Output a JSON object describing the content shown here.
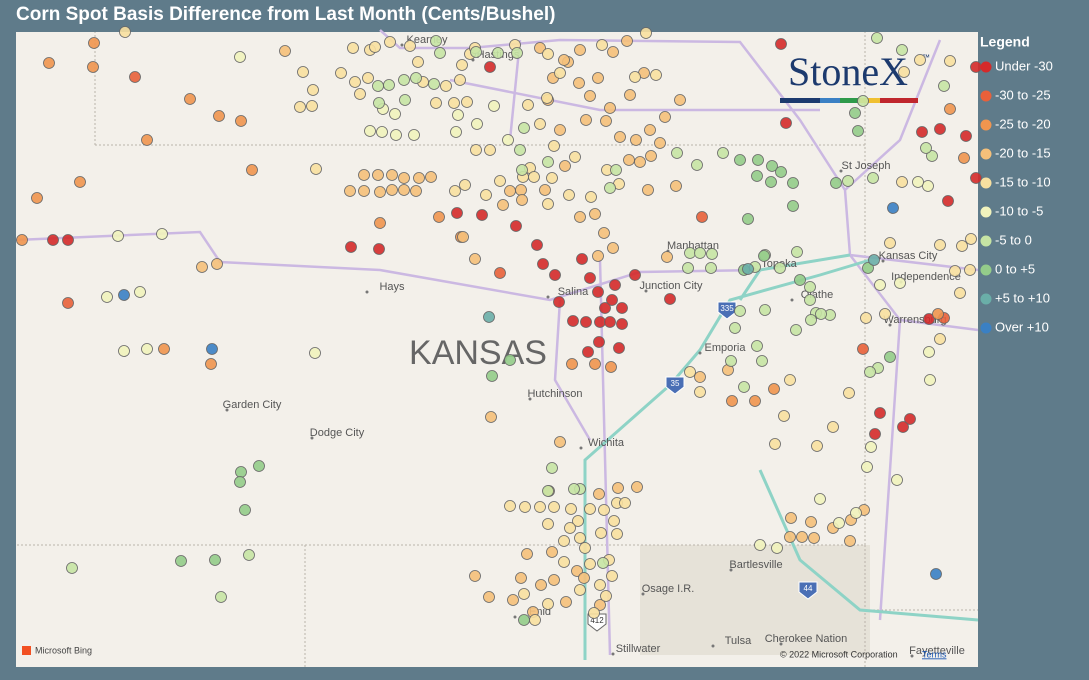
{
  "title": "Corn Spot Basis Difference from Last Month (Cents/Bushel)",
  "legend": {
    "title": "Legend",
    "items": [
      {
        "label": "Under -30",
        "color": "#d42a2a"
      },
      {
        "label": "-30 to -25",
        "color": "#e8603a"
      },
      {
        "label": "-25 to -20",
        "color": "#f0954f"
      },
      {
        "label": "-20 to -15",
        "color": "#f5c07a"
      },
      {
        "label": "-15 to -10",
        "color": "#f8e0a0"
      },
      {
        "label": "-10 to -5",
        "color": "#f1f3bd"
      },
      {
        "label": "-5 to 0",
        "color": "#c6e4a4"
      },
      {
        "label": "0 to +5",
        "color": "#94cc8a"
      },
      {
        "label": "+5 to +10",
        "color": "#6aaea8"
      },
      {
        "label": "Over +10",
        "color": "#3a80c4"
      }
    ]
  },
  "map": {
    "state_label": "KANSAS",
    "places": [
      "Kearney",
      "Hastings",
      "St Joseph",
      "Manhattan",
      "Topeka",
      "Kansas City",
      "Independence",
      "Hays",
      "Salina",
      "Junction City",
      "Olathe",
      "Warrensburg",
      "Emporia",
      "Hutchinson",
      "Garden City",
      "Dodge City",
      "Wichita",
      "Bartlesville",
      "Osage I.R.",
      "Enid",
      "Tulsa",
      "Cherokee Nation",
      "Stillwater",
      "Fayetteville"
    ],
    "shields": [
      "335",
      "35",
      "44",
      "412"
    ]
  },
  "logo": {
    "text": "StoneX",
    "mark": "™"
  },
  "attribution": {
    "provider": "Microsoft Bing",
    "copyright": "© 2022 Microsoft Corporation",
    "terms": "Terms"
  }
}
